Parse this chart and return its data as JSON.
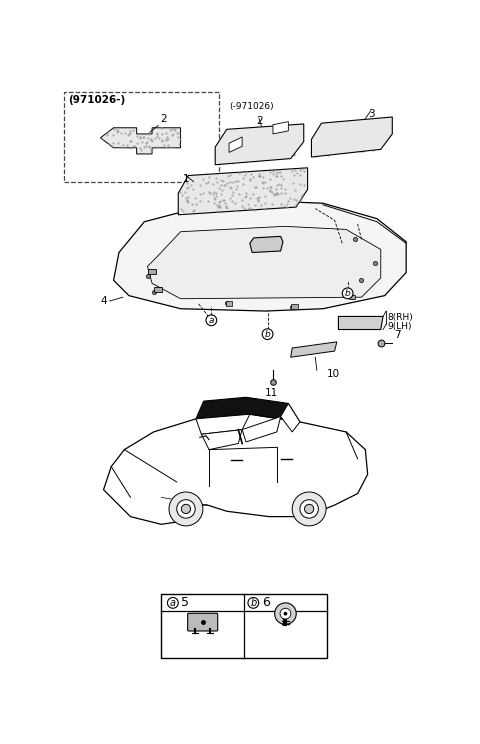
{
  "bg_color": "#ffffff",
  "line_color": "#000000",
  "gray_fill": "#e8e8e8",
  "dark_gray": "#555555",
  "stipple_color": "#999999",
  "labels": {
    "box_title": "(971026-)",
    "neg_971026": "(-971026)",
    "l1": "1",
    "l2": "2",
    "l3": "3",
    "l4": "4",
    "l7": "7",
    "l8": "8(RH)",
    "l9": "9(LH)",
    "l10": "10",
    "l11": "11",
    "la": "a",
    "lb": "b",
    "leg_a": "a",
    "leg_b": "b",
    "leg_5": "5",
    "leg_6": "6"
  }
}
